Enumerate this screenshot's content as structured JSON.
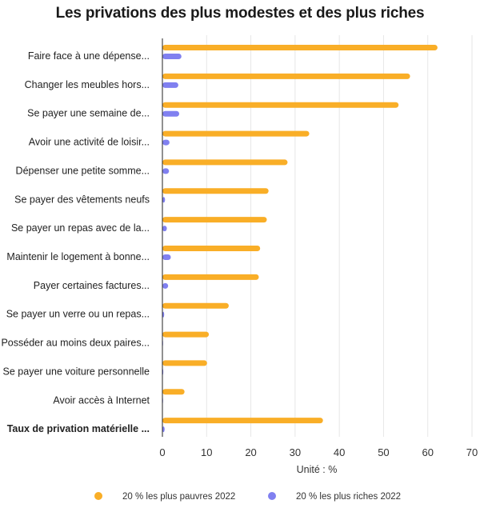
{
  "chart_data": {
    "type": "bar",
    "orientation": "horizontal",
    "title": "Les privations des plus modestes et des plus riches",
    "xlabel": "Unité : %",
    "xlim": [
      0,
      70
    ],
    "xticks": [
      "0",
      "10",
      "20",
      "30",
      "40",
      "50",
      "60",
      "70"
    ],
    "grid": true,
    "legend_position": "bottom",
    "categories": [
      "Faire face à une dépense...",
      "Changer les meubles hors...",
      "Se payer une semaine de...",
      "Avoir une activité de loisir...",
      "Dépenser une petite somme...",
      "Se payer des vêtements neufs",
      "Se payer un repas avec de la...",
      "Maintenir le logement à bonne...",
      "Payer certaines factures...",
      "Se payer un verre ou un repas...",
      "Posséder au moins deux paires...",
      "Se payer une voiture personnelle",
      "Avoir accès à Internet",
      "Taux de privation matérielle ..."
    ],
    "bold_categories": [
      13
    ],
    "series": [
      {
        "name": "20 % les plus pauvres 2022",
        "color": "#f9ae27",
        "values": [
          62.2,
          56,
          53.4,
          33.2,
          28.3,
          24,
          23.6,
          22.1,
          21.8,
          15,
          10.5,
          10.1,
          5,
          36.3
        ]
      },
      {
        "name": "20 % les plus riches 2022",
        "color": "#8080f0",
        "values": [
          4.3,
          3.6,
          3.8,
          1.6,
          1.5,
          0.6,
          1,
          1.9,
          1.3,
          0.4,
          0.1,
          0.2,
          0.1,
          0.5
        ]
      }
    ]
  }
}
